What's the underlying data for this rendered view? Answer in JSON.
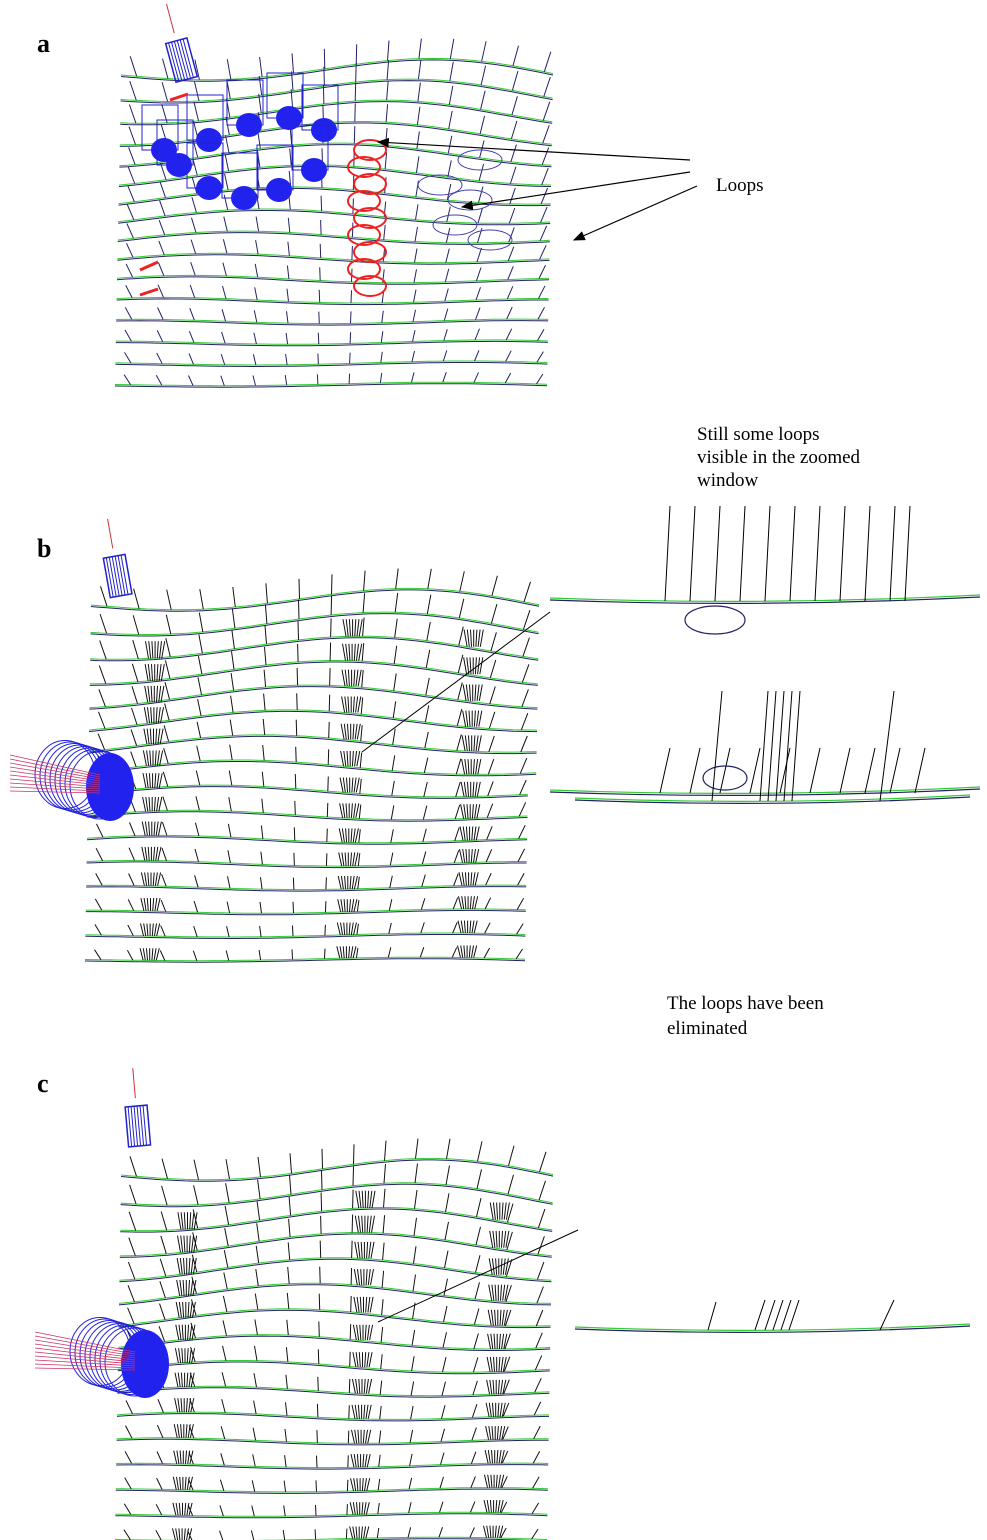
{
  "panels": [
    {
      "label": "a",
      "annotation": [
        "Loops"
      ]
    },
    {
      "label": "b",
      "annotation": [
        "Still some loops",
        "visible in the zoomed",
        "window"
      ]
    },
    {
      "label": "c",
      "annotation": [
        "The loops have been",
        "eliminated"
      ]
    }
  ]
}
